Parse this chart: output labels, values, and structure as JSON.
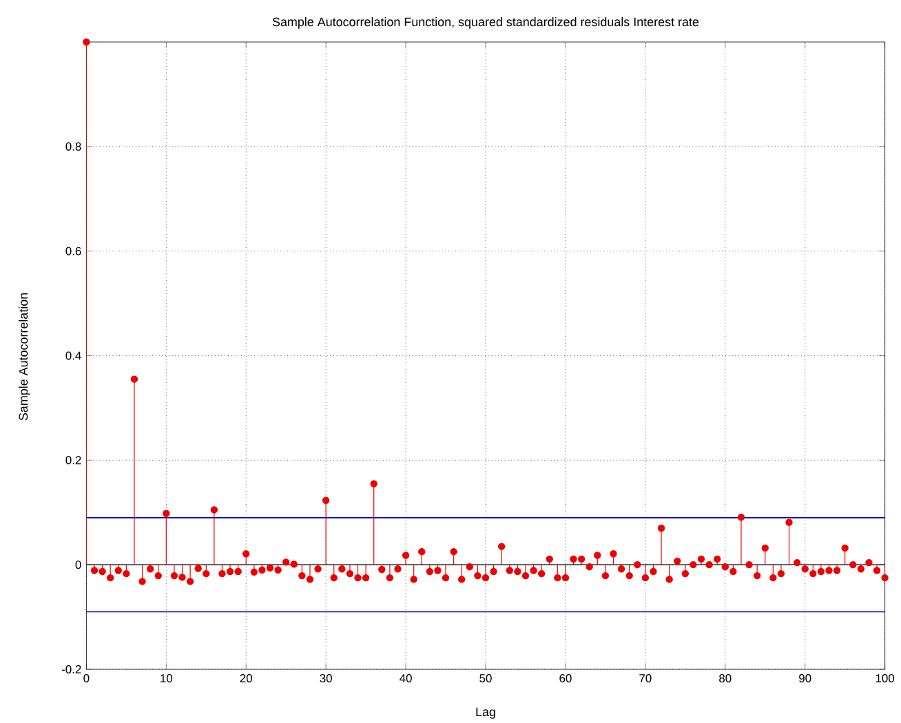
{
  "chart_data": {
    "type": "lollipop",
    "title": "Sample Autocorrelation Function, squared standardized residuals Interest rate",
    "xlabel": "Lag",
    "ylabel": "Sample Autocorrelation",
    "x": [
      0,
      1,
      2,
      3,
      4,
      5,
      6,
      7,
      8,
      9,
      10,
      11,
      12,
      13,
      14,
      15,
      16,
      17,
      18,
      19,
      20,
      21,
      22,
      23,
      24,
      25,
      26,
      27,
      28,
      29,
      30,
      31,
      32,
      33,
      34,
      35,
      36,
      37,
      38,
      39,
      40,
      41,
      42,
      43,
      44,
      45,
      46,
      47,
      48,
      49,
      50,
      51,
      52,
      53,
      54,
      55,
      56,
      57,
      58,
      59,
      60,
      61,
      62,
      63,
      64,
      65,
      66,
      67,
      68,
      69,
      70,
      71,
      72,
      73,
      74,
      75,
      76,
      77,
      78,
      79,
      80,
      81,
      82,
      83,
      84,
      85,
      86,
      87,
      88,
      89,
      90,
      91,
      92,
      93,
      94,
      95,
      96,
      97,
      98,
      99,
      100
    ],
    "series": [
      {
        "color": "#ee0000",
        "values": [
          1,
          -0.011,
          -0.013,
          -0.025,
          -0.011,
          -0.017,
          0.355,
          -0.032,
          -0.008,
          -0.021,
          0.098,
          -0.021,
          -0.024,
          -0.032,
          -0.007,
          -0.017,
          0.105,
          -0.017,
          -0.013,
          -0.013,
          0.021,
          -0.014,
          -0.01,
          -0.006,
          -0.01,
          0.005,
          0.001,
          -0.021,
          -0.028,
          -0.008,
          0.123,
          -0.025,
          -0.008,
          -0.017,
          -0.025,
          -0.025,
          0.155,
          -0.009,
          -0.025,
          -0.008,
          0.018,
          -0.028,
          0.025,
          -0.013,
          -0.011,
          -0.025,
          0.025,
          -0.028,
          -0.004,
          -0.021,
          -0.025,
          -0.013,
          0.035,
          -0.011,
          -0.013,
          -0.021,
          -0.011,
          -0.017,
          0.011,
          -0.025,
          -0.025,
          0.011,
          0.011,
          -0.004,
          0.018,
          -0.021,
          0.021,
          -0.008,
          -0.021,
          0,
          -0.025,
          -0.013,
          0.07,
          -0.028,
          0.007,
          -0.017,
          0,
          0.011,
          0,
          0.011,
          -0.004,
          -0.013,
          0.091,
          0,
          -0.021,
          0.032,
          -0.025,
          -0.017,
          0.081,
          0.004,
          -0.008,
          -0.017,
          -0.013,
          -0.011,
          -0.011,
          0.032,
          0,
          -0.008,
          0.004,
          -0.011,
          -0.025
        ]
      }
    ],
    "xlim": [
      0,
      100
    ],
    "ylim": [
      -0.2,
      1
    ],
    "xticks": [
      0,
      10,
      20,
      30,
      40,
      50,
      60,
      70,
      80,
      90,
      100
    ],
    "yticks": [
      -0.2,
      0,
      0.2,
      0.4,
      0.6,
      0.8
    ],
    "ref_lines": [
      {
        "axis": "y",
        "value": 0.09,
        "color": "#0000cc"
      },
      {
        "axis": "y",
        "value": -0.09,
        "color": "#0000cc"
      }
    ],
    "grid": true,
    "marker": "circle"
  }
}
